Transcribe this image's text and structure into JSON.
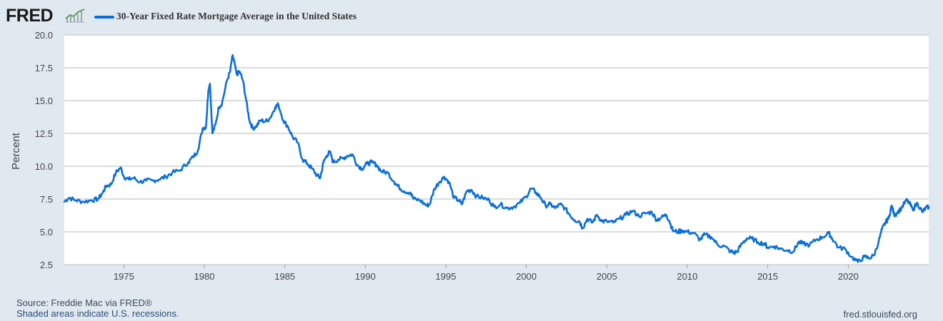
{
  "header": {
    "logo": "FRED",
    "logo_icon": "chart-line-icon",
    "legend_label": "30-Year Fixed Rate Mortgage Average in the United States"
  },
  "footer": {
    "source": "Source: Freddie Mac via FRED®",
    "recession_note": "Shaded areas indicate U.S. recessions.",
    "site": "fred.stlouisfed.org"
  },
  "colors": {
    "series": "#0a6fd8",
    "plot_background": "#ffffff",
    "page_background": "#e1e9f0",
    "grid": "#c8c8c8"
  },
  "chart_data": {
    "type": "line",
    "title": "30-Year Fixed Rate Mortgage Average in the United States",
    "xlabel": "",
    "ylabel": "Percent",
    "xlim": [
      1971.3,
      2025.0
    ],
    "ylim": [
      2.5,
      20.0
    ],
    "x_ticks": [
      "1975",
      "1980",
      "1985",
      "1990",
      "1995",
      "2000",
      "2005",
      "2010",
      "2015",
      "2020"
    ],
    "y_ticks": [
      "2.5",
      "5.0",
      "7.5",
      "10.0",
      "12.5",
      "15.0",
      "17.5",
      "20.0"
    ],
    "grid": "horizontal",
    "legend": "top-left",
    "series": [
      {
        "name": "30-Year Fixed Rate Mortgage Average in the United States",
        "x": [
          1971.3,
          1971.6,
          1972.0,
          1972.5,
          1973.0,
          1973.4,
          1973.7,
          1973.9,
          1974.2,
          1974.5,
          1974.8,
          1975.0,
          1975.3,
          1975.6,
          1976.0,
          1976.4,
          1976.8,
          1977.2,
          1977.6,
          1978.0,
          1978.5,
          1979.0,
          1979.3,
          1979.6,
          1979.9,
          1980.1,
          1980.25,
          1980.35,
          1980.5,
          1980.7,
          1980.9,
          1981.1,
          1981.4,
          1981.6,
          1981.75,
          1981.85,
          1982.0,
          1982.2,
          1982.4,
          1982.6,
          1982.8,
          1983.0,
          1983.2,
          1983.5,
          1983.8,
          1984.1,
          1984.4,
          1984.6,
          1984.9,
          1985.2,
          1985.5,
          1985.8,
          1986.1,
          1986.4,
          1986.7,
          1987.0,
          1987.2,
          1987.4,
          1987.6,
          1987.8,
          1988.0,
          1988.3,
          1988.6,
          1988.9,
          1989.2,
          1989.5,
          1989.8,
          1990.1,
          1990.4,
          1990.7,
          1991.0,
          1991.4,
          1991.8,
          1992.0,
          1992.4,
          1992.8,
          1993.0,
          1993.4,
          1993.8,
          1994.0,
          1994.3,
          1994.6,
          1994.9,
          1995.2,
          1995.5,
          1995.8,
          1996.0,
          1996.3,
          1996.6,
          1996.9,
          1997.3,
          1997.7,
          1998.0,
          1998.4,
          1998.8,
          1999.2,
          1999.6,
          2000.0,
          2000.3,
          2000.6,
          2000.9,
          2001.2,
          2001.5,
          2001.8,
          2002.1,
          2002.4,
          2002.7,
          2003.0,
          2003.3,
          2003.5,
          2003.8,
          2004.1,
          2004.4,
          2004.7,
          2005.0,
          2005.4,
          2005.8,
          2006.2,
          2006.6,
          2007.0,
          2007.4,
          2007.8,
          2008.1,
          2008.4,
          2008.7,
          2008.9,
          2009.1,
          2009.4,
          2009.7,
          2010.0,
          2010.4,
          2010.8,
          2011.1,
          2011.5,
          2011.9,
          2012.3,
          2012.7,
          2012.9,
          2013.1,
          2013.4,
          2013.7,
          2014.0,
          2014.4,
          2014.8,
          2015.0,
          2015.4,
          2015.8,
          2016.2,
          2016.6,
          2016.9,
          2017.2,
          2017.6,
          2018.0,
          2018.4,
          2018.8,
          2019.0,
          2019.4,
          2019.8,
          2020.2,
          2020.6,
          2021.0,
          2021.3,
          2021.6,
          2021.9,
          2022.1,
          2022.3,
          2022.5,
          2022.7,
          2022.85,
          2023.0,
          2023.3,
          2023.6,
          2023.8,
          2024.0,
          2024.3,
          2024.6,
          2024.8,
          2025.0
        ],
        "values": [
          7.3,
          7.6,
          7.4,
          7.3,
          7.4,
          7.5,
          8.0,
          8.5,
          8.6,
          9.5,
          9.9,
          9.2,
          9.0,
          9.1,
          8.8,
          8.9,
          8.9,
          9.0,
          9.2,
          9.5,
          9.7,
          10.3,
          10.7,
          11.2,
          12.9,
          13.0,
          15.8,
          16.3,
          12.5,
          13.2,
          14.5,
          14.8,
          16.5,
          17.2,
          18.4,
          18.0,
          17.0,
          17.2,
          16.5,
          15.0,
          13.5,
          12.9,
          13.0,
          13.5,
          13.4,
          13.7,
          14.5,
          14.7,
          13.5,
          13.0,
          12.2,
          11.8,
          10.5,
          10.2,
          9.8,
          9.3,
          9.1,
          10.3,
          10.8,
          11.1,
          10.3,
          10.5,
          10.6,
          10.8,
          10.9,
          10.1,
          9.8,
          10.2,
          10.3,
          10.1,
          9.6,
          9.5,
          8.8,
          8.5,
          8.1,
          8.0,
          7.5,
          7.4,
          7.0,
          7.1,
          8.3,
          8.8,
          9.2,
          8.8,
          7.6,
          7.4,
          7.1,
          8.1,
          8.2,
          7.7,
          7.6,
          7.4,
          6.9,
          7.1,
          6.8,
          6.9,
          7.2,
          7.7,
          8.3,
          8.0,
          7.6,
          7.0,
          7.1,
          6.8,
          7.1,
          6.8,
          6.3,
          5.9,
          5.8,
          5.3,
          6.0,
          5.7,
          6.3,
          5.8,
          5.8,
          5.7,
          6.0,
          6.3,
          6.6,
          6.2,
          6.4,
          6.5,
          5.9,
          6.1,
          6.3,
          5.8,
          5.1,
          5.0,
          5.1,
          5.0,
          4.9,
          4.4,
          4.8,
          4.6,
          4.0,
          3.9,
          3.5,
          3.4,
          3.5,
          4.1,
          4.5,
          4.5,
          4.2,
          4.1,
          3.8,
          3.9,
          3.7,
          3.6,
          3.5,
          4.2,
          4.1,
          4.0,
          4.4,
          4.6,
          4.9,
          4.5,
          3.8,
          3.7,
          3.1,
          2.7,
          3.1,
          3.0,
          3.2,
          4.3,
          5.2,
          5.7,
          6.0,
          7.0,
          6.3,
          6.4,
          6.8,
          7.4,
          7.2,
          6.7,
          7.2,
          6.5,
          6.8,
          6.9
        ]
      }
    ]
  }
}
